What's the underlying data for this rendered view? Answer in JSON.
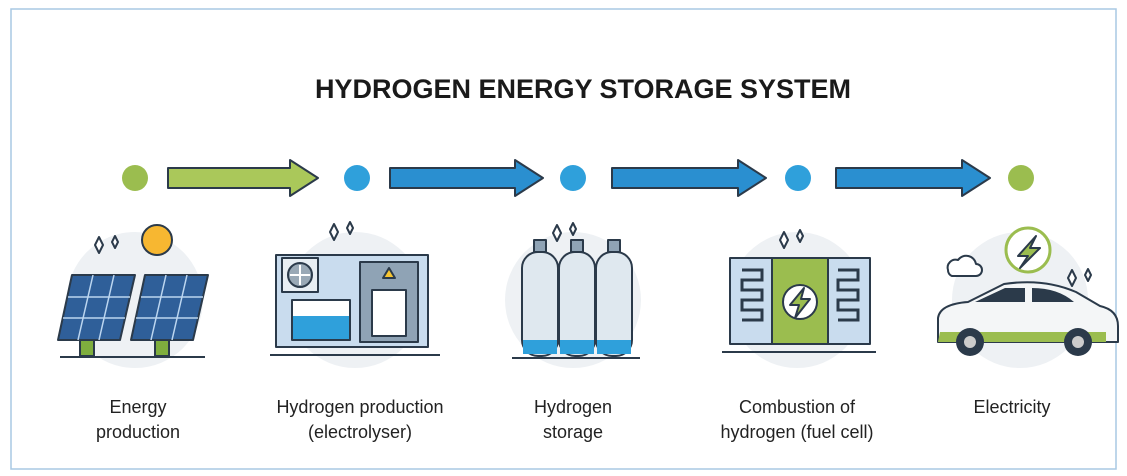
{
  "title": "HYDROGEN ENERGY STORAGE SYSTEM",
  "stages": [
    {
      "label": [
        "Energy",
        "production"
      ]
    },
    {
      "label": [
        "Hydrogen production",
        "(electrolyser)"
      ]
    },
    {
      "label": [
        "Hydrogen",
        "storage"
      ]
    },
    {
      "label": [
        "Combustion of",
        "hydrogen (fuel cell)"
      ]
    },
    {
      "label": [
        "Electricity"
      ]
    }
  ]
}
